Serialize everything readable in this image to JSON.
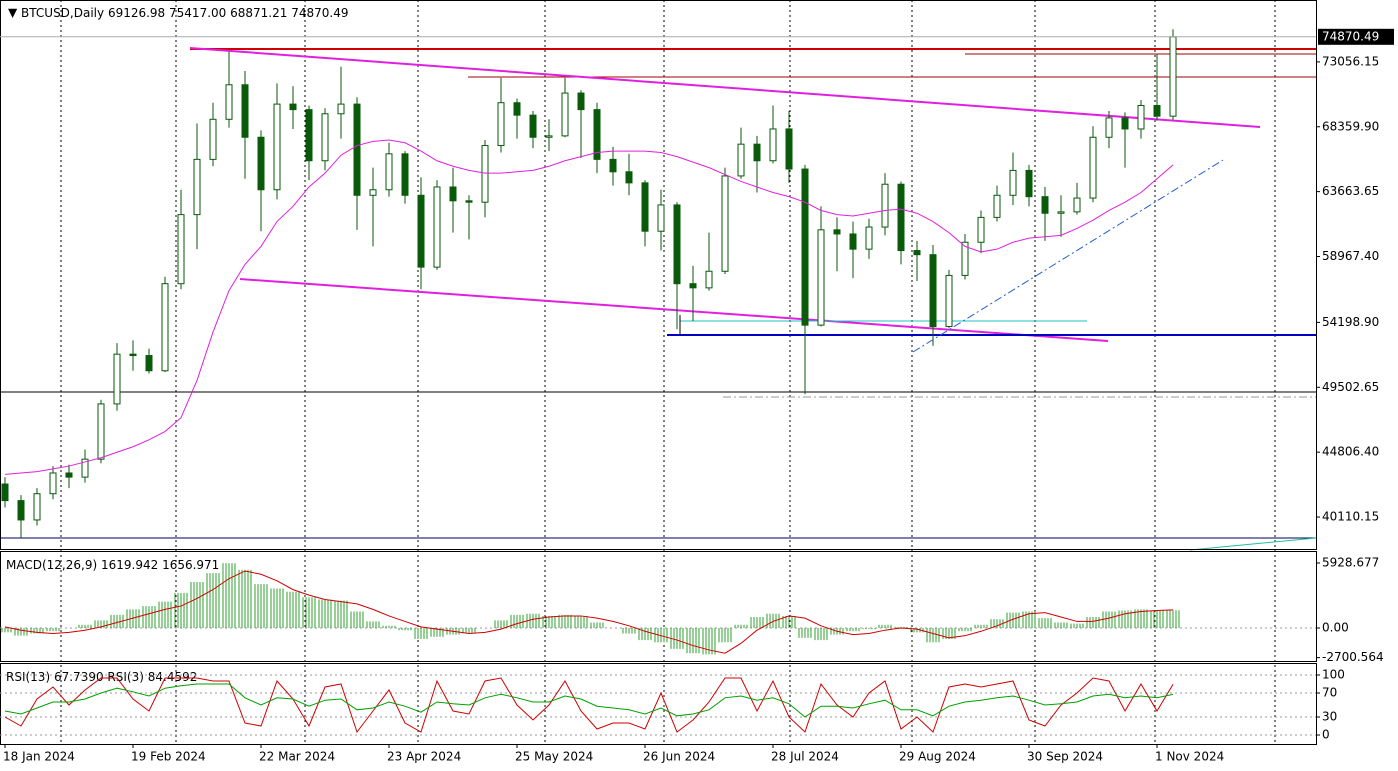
{
  "chart_data": [
    {
      "type": "candlestick",
      "symbol": "BTCUSD,Daily",
      "ohlc_labels": [
        "69126.98",
        "75417.00",
        "68871.21",
        "74870.49"
      ],
      "categories": [
        "18 Jan 2024",
        null,
        null,
        null,
        null,
        null,
        null,
        null,
        "19 Feb 2024",
        null,
        null,
        null,
        null,
        null,
        null,
        null,
        "22 Mar 2024",
        null,
        null,
        null,
        null,
        null,
        null,
        null,
        "23 Apr 2024",
        null,
        null,
        null,
        null,
        null,
        null,
        null,
        "25 May 2024",
        null,
        null,
        null,
        null,
        null,
        null,
        null,
        "26 Jun 2024",
        null,
        null,
        null,
        null,
        null,
        null,
        null,
        "28 Jul 2024",
        null,
        null,
        null,
        null,
        null,
        null,
        null,
        "29 Aug 2024",
        null,
        null,
        null,
        null,
        null,
        null,
        null,
        "30 Sep 2024",
        null,
        null,
        null,
        null,
        null,
        null,
        null,
        "1 Nov 2024",
        null
      ],
      "open": [
        42500,
        41300,
        39900,
        41800,
        43300,
        43000,
        44300,
        48300,
        51900,
        51800,
        50700,
        57000,
        62000,
        66000,
        68900,
        71400,
        67600,
        63800,
        70000,
        69600,
        65900,
        69300,
        70000,
        63400,
        63800,
        66400,
        63400,
        58200,
        64000,
        63000,
        62900,
        67000,
        70100,
        69200,
        67600,
        67700,
        70800,
        69600,
        66000,
        65100,
        64300,
        60800,
        62700,
        57000,
        56700,
        57900,
        64800,
        67100,
        65900,
        68200,
        65300,
        54000,
        60900,
        60600,
        59500,
        61100,
        64200,
        59400,
        59100,
        53900,
        57600,
        60000,
        61800,
        63400,
        65200,
        63300,
        62100,
        62200,
        63200,
        67600,
        69000,
        68200,
        69900,
        69126.98
      ],
      "high": [
        43000,
        41700,
        42200,
        43800,
        43900,
        45000,
        48600,
        52700,
        52900,
        52300,
        57500,
        63800,
        68600,
        70100,
        73800,
        72400,
        68100,
        71500,
        71300,
        69900,
        69700,
        72700,
        70500,
        65400,
        67200,
        66600,
        64700,
        64500,
        65400,
        63400,
        67400,
        71900,
        70400,
        69500,
        68900,
        71900,
        71000,
        70100,
        66900,
        66400,
        64500,
        63800,
        62900,
        58300,
        60700,
        65400,
        68300,
        67700,
        69900,
        69500,
        65600,
        62600,
        61800,
        61500,
        61700,
        65000,
        64400,
        60100,
        59800,
        58000,
        60600,
        62300,
        64100,
        66500,
        65600,
        64000,
        63400,
        64300,
        68400,
        69500,
        69400,
        70300,
        73600,
        75417
      ],
      "low": [
        40800,
        38600,
        39500,
        41400,
        42200,
        42600,
        44000,
        47800,
        50700,
        50500,
        50600,
        56600,
        59500,
        65500,
        68300,
        64600,
        60800,
        63100,
        68200,
        64500,
        65200,
        67500,
        60900,
        59700,
        63300,
        62800,
        56600,
        58000,
        60700,
        60200,
        61800,
        66500,
        67500,
        66800,
        66600,
        67600,
        66100,
        65000,
        64100,
        63400,
        59700,
        59400,
        53700,
        54300,
        56500,
        57700,
        64600,
        63600,
        65700,
        64300,
        49000,
        53900,
        57900,
        57400,
        58800,
        60500,
        58400,
        57200,
        52500,
        53800,
        57300,
        59200,
        61500,
        62700,
        62600,
        60100,
        60400,
        62000,
        62900,
        66800,
        65400,
        67500,
        68800,
        68871.21
      ],
      "close": [
        41300,
        39900,
        41800,
        43300,
        43000,
        44300,
        48300,
        51900,
        51800,
        50700,
        57000,
        62000,
        66000,
        68900,
        71400,
        67600,
        63800,
        70000,
        69600,
        65900,
        69300,
        70000,
        63400,
        63800,
        66400,
        63400,
        58200,
        64000,
        63000,
        62900,
        67000,
        70100,
        69200,
        67600,
        67700,
        70800,
        69600,
        66000,
        65100,
        64300,
        60800,
        62700,
        57000,
        56700,
        57900,
        64800,
        67100,
        65900,
        68200,
        65300,
        54000,
        60900,
        60600,
        59500,
        61100,
        64200,
        59400,
        59100,
        53900,
        57600,
        60000,
        61800,
        63400,
        65200,
        63300,
        62100,
        62200,
        63200,
        67600,
        69000,
        68200,
        69900,
        69130,
        74870.49
      ],
      "ma": {
        "color": "#e020e0",
        "values": [
          43200,
          43300,
          43400,
          43600,
          43800,
          44100,
          44400,
          44800,
          45200,
          45700,
          46300,
          47300,
          50000,
          53500,
          56500,
          58400,
          59700,
          61500,
          62600,
          64000,
          65000,
          66300,
          67000,
          67300,
          67400,
          67200,
          66600,
          65900,
          65500,
          65200,
          65000,
          65000,
          65100,
          65200,
          65500,
          65900,
          66200,
          66500,
          66600,
          66600,
          66600,
          66500,
          66200,
          65800,
          65400,
          64900,
          64400,
          64000,
          63600,
          63300,
          62900,
          62300,
          62000,
          61900,
          62100,
          62300,
          62400,
          62100,
          61500,
          60700,
          59700,
          59300,
          59500,
          60000,
          60300,
          60400,
          60500,
          61000,
          61600,
          62300,
          62900,
          63600,
          64600,
          65600
        ]
      },
      "up_color": "#ffffff",
      "down_color": "#0a5a0a",
      "outline_color": "#0a5a0a",
      "ylim": [
        37870,
        77390
      ],
      "yticks": [
        73056.15,
        {
          "value": 68359.9,
          "label": "68359.90"
        },
        63663.65,
        {
          "value": 58967.4,
          "label": "58967.40"
        },
        {
          "value": 54198.9,
          "label": "54198.90"
        },
        49502.65,
        {
          "value": 44806.4,
          "label": "44806.40"
        },
        40110.15
      ]
    },
    {
      "type": "macd",
      "title": "MACD(12,26,9)",
      "histogram": {
        "color": "#2ca02c",
        "values": [
          -400,
          -700,
          -500,
          -300,
          0,
          300,
          700,
          1200,
          1700,
          2000,
          2400,
          3200,
          4200,
          5000,
          5900,
          5300,
          4000,
          3600,
          3300,
          2800,
          2600,
          2500,
          1500,
          600,
          200,
          -200,
          -1000,
          -800,
          -600,
          -500,
          0,
          700,
          1200,
          1300,
          1100,
          1200,
          1100,
          500,
          0,
          -500,
          -1100,
          -1300,
          -1900,
          -2300,
          -2400,
          -1300,
          300,
          1000,
          1300,
          1100,
          -900,
          -1100,
          -600,
          -300,
          -100,
          300,
          100,
          -400,
          -1300,
          -1000,
          -300,
          300,
          800,
          1400,
          1500,
          900,
          500,
          400,
          1000,
          1500,
          1600,
          1700,
          1600,
          1619.942
        ]
      },
      "signal": {
        "color": "#d00000",
        "values": [
          100,
          -200,
          -400,
          -500,
          -400,
          -200,
          100,
          500,
          900,
          1300,
          1700,
          2000,
          2700,
          3500,
          4500,
          5200,
          4900,
          4300,
          3500,
          3000,
          2600,
          2400,
          2200,
          1700,
          1100,
          600,
          100,
          -100,
          -300,
          -500,
          -400,
          -100,
          400,
          800,
          1000,
          1100,
          1100,
          900,
          600,
          200,
          -300,
          -700,
          -1100,
          -1600,
          -2000,
          -2300,
          -1400,
          -200,
          600,
          1100,
          900,
          200,
          -300,
          -600,
          -500,
          -200,
          0,
          -100,
          -500,
          -900,
          -700,
          -300,
          200,
          800,
          1300,
          1400,
          1000,
          600,
          600,
          900,
          1300,
          1500,
          1600,
          1656.971
        ]
      },
      "ylim": [
        -3100,
        6930
      ],
      "yticks": [
        5928.677,
        {
          "value": 0,
          "label": "0.00"
        },
        -2700.564
      ]
    },
    {
      "type": "rsi",
      "series": [
        {
          "name": "RSI(13)",
          "color": "#00a000",
          "values": [
            40,
            35,
            45,
            55,
            55,
            60,
            70,
            78,
            72,
            65,
            78,
            82,
            85,
            85,
            85,
            62,
            50,
            62,
            60,
            48,
            58,
            60,
            42,
            45,
            55,
            48,
            38,
            55,
            52,
            50,
            62,
            68,
            62,
            55,
            55,
            65,
            60,
            48,
            45,
            42,
            35,
            45,
            32,
            35,
            42,
            62,
            65,
            58,
            62,
            52,
            30,
            48,
            48,
            45,
            52,
            58,
            42,
            42,
            32,
            48,
            55,
            58,
            62,
            65,
            58,
            50,
            52,
            55,
            65,
            68,
            62,
            65,
            62,
            67.739
          ],
          "value_labels": [
            null,
            null,
            null,
            null,
            null,
            null,
            null,
            null,
            null,
            null,
            null,
            null,
            null,
            null,
            null,
            null,
            null,
            null,
            null,
            null,
            null,
            null,
            null,
            null,
            null,
            null,
            null,
            null,
            null,
            null,
            null,
            null,
            null,
            null,
            null,
            null,
            null,
            null,
            null,
            null,
            null,
            null,
            null,
            null,
            null,
            null,
            null,
            null,
            null,
            null,
            null,
            null,
            null,
            null,
            null,
            null,
            null,
            null,
            null,
            null,
            null,
            null,
            null,
            null,
            null,
            null,
            null,
            null,
            null,
            null,
            null,
            null,
            null,
            "67.7390"
          ]
        },
        {
          "name": "RSI(3)",
          "color": "#d00000",
          "values": [
            30,
            15,
            60,
            80,
            50,
            75,
            95,
            95,
            60,
            40,
            95,
            95,
            95,
            90,
            90,
            20,
            15,
            90,
            60,
            15,
            80,
            85,
            5,
            40,
            75,
            20,
            5,
            90,
            40,
            35,
            90,
            95,
            50,
            25,
            50,
            90,
            40,
            10,
            20,
            20,
            10,
            70,
            5,
            25,
            55,
            95,
            95,
            40,
            90,
            30,
            5,
            85,
            50,
            30,
            70,
            90,
            10,
            30,
            5,
            80,
            85,
            80,
            85,
            90,
            25,
            15,
            50,
            70,
            95,
            90,
            40,
            85,
            40,
            84.4592
          ]
        }
      ],
      "ylim": [
        -15,
        115
      ],
      "yticks": [
        100,
        70,
        30,
        0
      ]
    }
  ]
}
